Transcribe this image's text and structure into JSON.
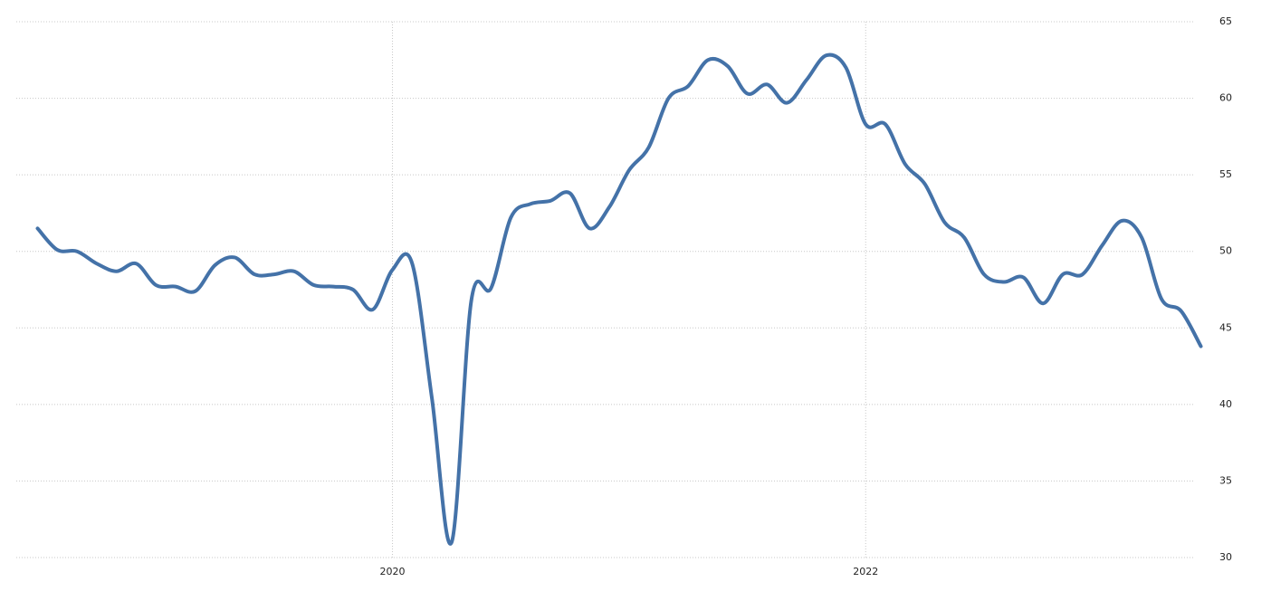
{
  "chart_data": {
    "type": "line",
    "x": [
      2018.5,
      2018.5833,
      2018.6667,
      2018.75,
      2018.8333,
      2018.9167,
      2019.0,
      2019.0833,
      2019.1667,
      2019.25,
      2019.3333,
      2019.4167,
      2019.5,
      2019.5833,
      2019.6667,
      2019.75,
      2019.8333,
      2019.9167,
      2020.0,
      2020.0833,
      2020.1667,
      2020.25,
      2020.3333,
      2020.4167,
      2020.5,
      2020.5833,
      2020.6667,
      2020.75,
      2020.8333,
      2020.9167,
      2021.0,
      2021.0833,
      2021.1667,
      2021.25,
      2021.3333,
      2021.4167,
      2021.5,
      2021.5833,
      2021.6667,
      2021.75,
      2021.8333,
      2021.9167,
      2022.0,
      2022.0833,
      2022.1667,
      2022.25,
      2022.3333,
      2022.4167,
      2022.5,
      2022.5833,
      2022.6667,
      2022.75,
      2022.8333,
      2022.9167,
      2023.0,
      2023.0833,
      2023.1667,
      2023.25,
      2023.3333,
      2023.4167
    ],
    "series": [
      {
        "color": "#4472a8",
        "values": [
          51.5,
          50.1,
          50.0,
          49.2,
          48.7,
          49.2,
          47.8,
          47.7,
          47.4,
          49.1,
          49.6,
          48.5,
          48.5,
          48.7,
          47.8,
          47.7,
          47.5,
          46.2,
          48.8,
          49.2,
          40.4,
          31.0,
          46.8,
          47.6,
          52.2,
          53.1,
          53.3,
          53.8,
          51.5,
          52.9,
          55.3,
          56.8,
          60.0,
          60.8,
          62.5,
          62.1,
          60.3,
          60.9,
          59.7,
          61.2,
          62.8,
          62.0,
          58.3,
          58.3,
          55.7,
          54.4,
          51.9,
          50.9,
          48.5,
          48.0,
          48.3,
          46.6,
          48.5,
          48.5,
          50.4,
          52.0,
          50.9,
          46.9,
          46.1,
          43.8
        ]
      }
    ],
    "xlim": [
      2018.41,
      2023.43
    ],
    "xticks": [
      2020,
      2022
    ],
    "ylim": [
      30,
      65
    ],
    "yticks": [
      30,
      35,
      40,
      45,
      50,
      55,
      60,
      65
    ],
    "grid": true
  }
}
